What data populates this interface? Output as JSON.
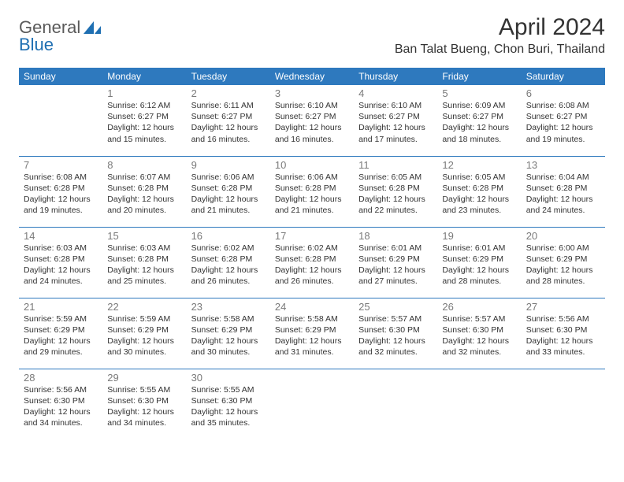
{
  "logo": {
    "textA": "General",
    "textB": "Blue"
  },
  "title": "April 2024",
  "location": "Ban Talat Bueng, Chon Buri, Thailand",
  "colors": {
    "header_bg": "#2e79be",
    "header_text": "#ffffff",
    "daynum": "#7a7a7a",
    "body_text": "#333333",
    "row_border": "#2e79be",
    "logo_gray": "#5a5a5a",
    "logo_blue": "#1f6fb2",
    "background": "#ffffff"
  },
  "weekdays": [
    "Sunday",
    "Monday",
    "Tuesday",
    "Wednesday",
    "Thursday",
    "Friday",
    "Saturday"
  ],
  "weeks": [
    [
      null,
      {
        "n": "1",
        "sr": "6:12 AM",
        "ss": "6:27 PM",
        "dl": "12 hours and 15 minutes."
      },
      {
        "n": "2",
        "sr": "6:11 AM",
        "ss": "6:27 PM",
        "dl": "12 hours and 16 minutes."
      },
      {
        "n": "3",
        "sr": "6:10 AM",
        "ss": "6:27 PM",
        "dl": "12 hours and 16 minutes."
      },
      {
        "n": "4",
        "sr": "6:10 AM",
        "ss": "6:27 PM",
        "dl": "12 hours and 17 minutes."
      },
      {
        "n": "5",
        "sr": "6:09 AM",
        "ss": "6:27 PM",
        "dl": "12 hours and 18 minutes."
      },
      {
        "n": "6",
        "sr": "6:08 AM",
        "ss": "6:27 PM",
        "dl": "12 hours and 19 minutes."
      }
    ],
    [
      {
        "n": "7",
        "sr": "6:08 AM",
        "ss": "6:28 PM",
        "dl": "12 hours and 19 minutes."
      },
      {
        "n": "8",
        "sr": "6:07 AM",
        "ss": "6:28 PM",
        "dl": "12 hours and 20 minutes."
      },
      {
        "n": "9",
        "sr": "6:06 AM",
        "ss": "6:28 PM",
        "dl": "12 hours and 21 minutes."
      },
      {
        "n": "10",
        "sr": "6:06 AM",
        "ss": "6:28 PM",
        "dl": "12 hours and 21 minutes."
      },
      {
        "n": "11",
        "sr": "6:05 AM",
        "ss": "6:28 PM",
        "dl": "12 hours and 22 minutes."
      },
      {
        "n": "12",
        "sr": "6:05 AM",
        "ss": "6:28 PM",
        "dl": "12 hours and 23 minutes."
      },
      {
        "n": "13",
        "sr": "6:04 AM",
        "ss": "6:28 PM",
        "dl": "12 hours and 24 minutes."
      }
    ],
    [
      {
        "n": "14",
        "sr": "6:03 AM",
        "ss": "6:28 PM",
        "dl": "12 hours and 24 minutes."
      },
      {
        "n": "15",
        "sr": "6:03 AM",
        "ss": "6:28 PM",
        "dl": "12 hours and 25 minutes."
      },
      {
        "n": "16",
        "sr": "6:02 AM",
        "ss": "6:28 PM",
        "dl": "12 hours and 26 minutes."
      },
      {
        "n": "17",
        "sr": "6:02 AM",
        "ss": "6:28 PM",
        "dl": "12 hours and 26 minutes."
      },
      {
        "n": "18",
        "sr": "6:01 AM",
        "ss": "6:29 PM",
        "dl": "12 hours and 27 minutes."
      },
      {
        "n": "19",
        "sr": "6:01 AM",
        "ss": "6:29 PM",
        "dl": "12 hours and 28 minutes."
      },
      {
        "n": "20",
        "sr": "6:00 AM",
        "ss": "6:29 PM",
        "dl": "12 hours and 28 minutes."
      }
    ],
    [
      {
        "n": "21",
        "sr": "5:59 AM",
        "ss": "6:29 PM",
        "dl": "12 hours and 29 minutes."
      },
      {
        "n": "22",
        "sr": "5:59 AM",
        "ss": "6:29 PM",
        "dl": "12 hours and 30 minutes."
      },
      {
        "n": "23",
        "sr": "5:58 AM",
        "ss": "6:29 PM",
        "dl": "12 hours and 30 minutes."
      },
      {
        "n": "24",
        "sr": "5:58 AM",
        "ss": "6:29 PM",
        "dl": "12 hours and 31 minutes."
      },
      {
        "n": "25",
        "sr": "5:57 AM",
        "ss": "6:30 PM",
        "dl": "12 hours and 32 minutes."
      },
      {
        "n": "26",
        "sr": "5:57 AM",
        "ss": "6:30 PM",
        "dl": "12 hours and 32 minutes."
      },
      {
        "n": "27",
        "sr": "5:56 AM",
        "ss": "6:30 PM",
        "dl": "12 hours and 33 minutes."
      }
    ],
    [
      {
        "n": "28",
        "sr": "5:56 AM",
        "ss": "6:30 PM",
        "dl": "12 hours and 34 minutes."
      },
      {
        "n": "29",
        "sr": "5:55 AM",
        "ss": "6:30 PM",
        "dl": "12 hours and 34 minutes."
      },
      {
        "n": "30",
        "sr": "5:55 AM",
        "ss": "6:30 PM",
        "dl": "12 hours and 35 minutes."
      },
      null,
      null,
      null,
      null
    ]
  ],
  "labels": {
    "sunrise": "Sunrise: ",
    "sunset": "Sunset: ",
    "daylight": "Daylight: "
  }
}
